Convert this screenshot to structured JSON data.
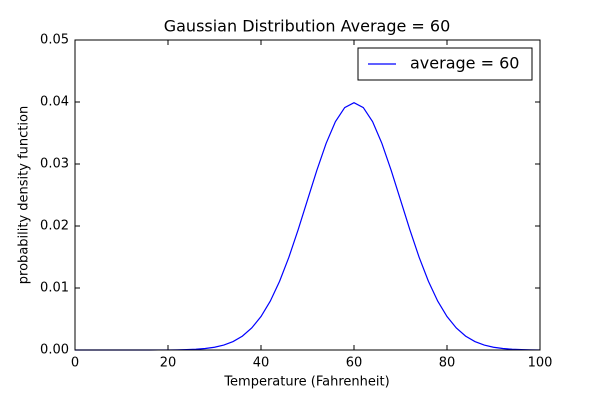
{
  "chart_data": {
    "type": "line",
    "title": "Gaussian Distribution Average = 60",
    "xlabel": "Temperature (Fahrenheit)",
    "ylabel": "probability density function",
    "x": [
      0,
      2,
      4,
      6,
      8,
      10,
      12,
      14,
      16,
      18,
      20,
      22,
      24,
      26,
      28,
      30,
      32,
      34,
      36,
      38,
      40,
      42,
      44,
      46,
      48,
      50,
      52,
      54,
      56,
      58,
      60,
      62,
      64,
      66,
      68,
      70,
      72,
      74,
      76,
      78,
      80,
      82,
      84,
      86,
      88,
      90,
      92,
      94,
      96,
      98,
      100
    ],
    "series": [
      {
        "name": "average = 60",
        "color": "#0000ff",
        "values": [
          0,
          0,
          0,
          0,
          0,
          0,
          0,
          0,
          0,
          1e-05,
          1e-05,
          3e-05,
          6e-05,
          0.00012,
          0.00024,
          0.00044,
          0.00079,
          0.00136,
          0.00224,
          0.00355,
          0.0054,
          0.00789,
          0.01109,
          0.01497,
          0.01942,
          0.0242,
          0.02897,
          0.03332,
          0.03683,
          0.0391,
          0.03989,
          0.0391,
          0.03683,
          0.03332,
          0.02897,
          0.0242,
          0.01942,
          0.01497,
          0.01109,
          0.00789,
          0.0054,
          0.00355,
          0.00224,
          0.00136,
          0.00079,
          0.00044,
          0.00024,
          0.00012,
          6e-05,
          3e-05,
          1e-05
        ]
      }
    ],
    "xlim": [
      0,
      100
    ],
    "xticks": [
      0,
      20,
      40,
      60,
      80,
      100
    ],
    "ylim": [
      0,
      0.05
    ],
    "yticks": [
      {
        "value": 0,
        "label": "0.00"
      },
      {
        "value": 0.01,
        "label": "0.01"
      },
      {
        "value": 0.02,
        "label": "0.02"
      },
      {
        "value": 0.03,
        "label": "0.03"
      },
      {
        "value": 0.04,
        "label": "0.04"
      },
      {
        "value": 0.05,
        "label": "0.05"
      }
    ],
    "legend": "upper right",
    "grid": false
  }
}
